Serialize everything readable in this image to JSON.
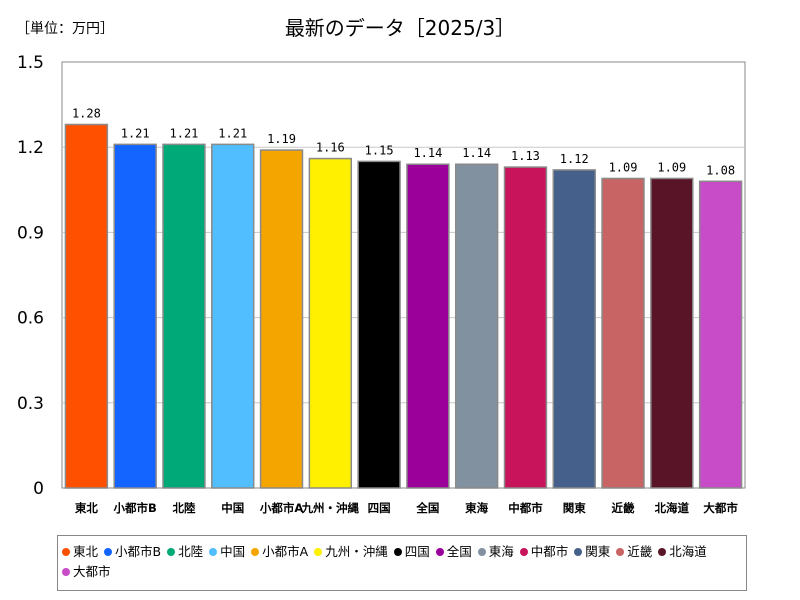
{
  "unit_label": "［単位：万円］",
  "chart_data": {
    "type": "bar",
    "title": "最新のデータ［2025/3］",
    "xlabel": "",
    "ylabel": "",
    "ylim": [
      0,
      1.5
    ],
    "yticks": [
      "0",
      "0.3",
      "0.6",
      "0.9",
      "1.2",
      "1.5"
    ],
    "grid": true,
    "legend_position": "bottom",
    "categories": [
      "東北",
      "小都市B",
      "北陸",
      "中国",
      "小都市A",
      "九州・沖縄",
      "四国",
      "全国",
      "東海",
      "中都市",
      "関東",
      "近畿",
      "北海道",
      "大都市"
    ],
    "values": [
      1.28,
      1.21,
      1.21,
      1.21,
      1.19,
      1.16,
      1.15,
      1.14,
      1.14,
      1.13,
      1.12,
      1.09,
      1.09,
      1.08
    ],
    "value_labels": [
      "1.28",
      "1.21",
      "1.21",
      "1.21",
      "1.19",
      "1.16",
      "1.15",
      "1.14",
      "1.14",
      "1.13",
      "1.12",
      "1.09",
      "1.09",
      "1.08"
    ],
    "colors": [
      "#ff5000",
      "#1464ff",
      "#00aa78",
      "#50beff",
      "#f5a500",
      "#fff000",
      "#000000",
      "#9b009b",
      "#8291a0",
      "#c8145a",
      "#46608c",
      "#c86464",
      "#5a1428",
      "#c84bc8"
    ]
  }
}
